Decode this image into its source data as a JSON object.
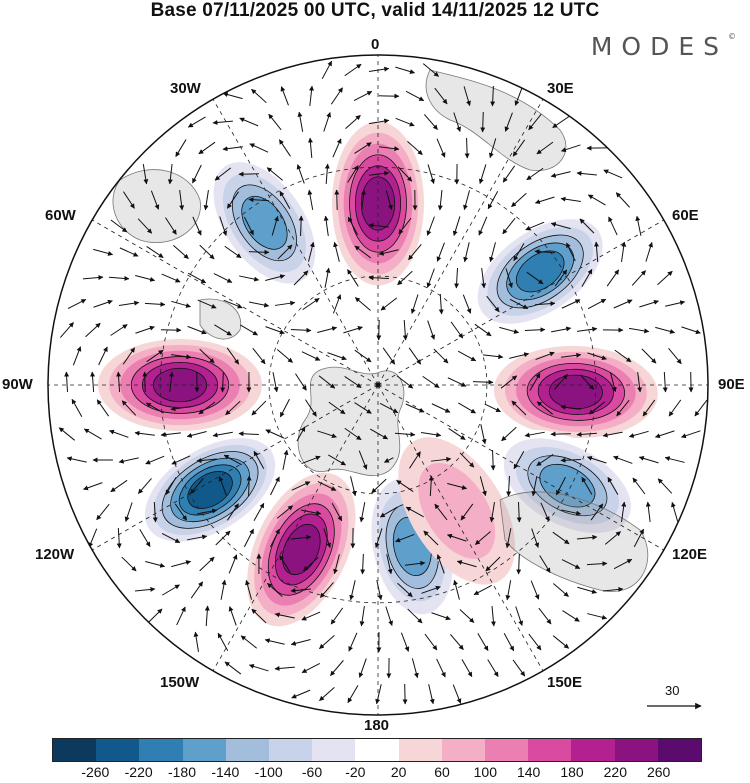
{
  "title": "Base 07/11/2025 00 UTC, valid 14/11/2025 12 UTC",
  "brand": "MODES",
  "brand_mark": "©",
  "lon_labels": {
    "lon_0": "0",
    "lon_30e": "30E",
    "lon_60e": "60E",
    "lon_90e": "90E",
    "lon_120e": "120E",
    "lon_150e": "150E",
    "lon_180": "180",
    "lon_150w": "150W",
    "lon_120w": "120W",
    "lon_90w": "90W",
    "lon_60w": "60W",
    "lon_30w": "30W"
  },
  "reference_vector": "30",
  "colorbar": {
    "colors": [
      "#0c3a5e",
      "#11598a",
      "#2f7fb3",
      "#5f9fcc",
      "#a3bedc",
      "#c8d2e8",
      "#e4e3f2",
      "#ffffff",
      "#f7d6d8",
      "#f4aec5",
      "#ec7fb2",
      "#d94aa0",
      "#b3208f",
      "#8a137f",
      "#5b0a6e"
    ],
    "ticks": [
      "-260",
      "-220",
      "-180",
      "-140",
      "-100",
      "-60",
      "-20",
      "20",
      "60",
      "100",
      "140",
      "180",
      "220",
      "260"
    ]
  },
  "anomaly_centers": [
    {
      "name": "positive-center-0",
      "lon": 0,
      "lat_from_pole": 0.55,
      "value": 230
    },
    {
      "name": "negative-center-30w",
      "lon": -35,
      "lat_from_pole": 0.6,
      "value": -200
    },
    {
      "name": "negative-center-60e",
      "lon": 55,
      "lat_from_pole": 0.6,
      "value": -230
    },
    {
      "name": "positive-center-90e",
      "lon": 92,
      "lat_from_pole": 0.6,
      "value": 250
    },
    {
      "name": "positive-center-90w",
      "lon": -90,
      "lat_from_pole": 0.6,
      "value": 250
    },
    {
      "name": "negative-center-120w",
      "lon": -122,
      "lat_from_pole": 0.6,
      "value": -260
    },
    {
      "name": "positive-center-150w",
      "lon": -155,
      "lat_from_pole": 0.55,
      "value": 240
    },
    {
      "name": "negative-center-170e",
      "lon": 168,
      "lat_from_pole": 0.5,
      "value": -180
    },
    {
      "name": "negative-center-120e",
      "lon": 118,
      "lat_from_pole": 0.65,
      "value": -200
    },
    {
      "name": "positive-center-150e",
      "lon": 148,
      "lat_from_pole": 0.45,
      "value": 80
    }
  ]
}
